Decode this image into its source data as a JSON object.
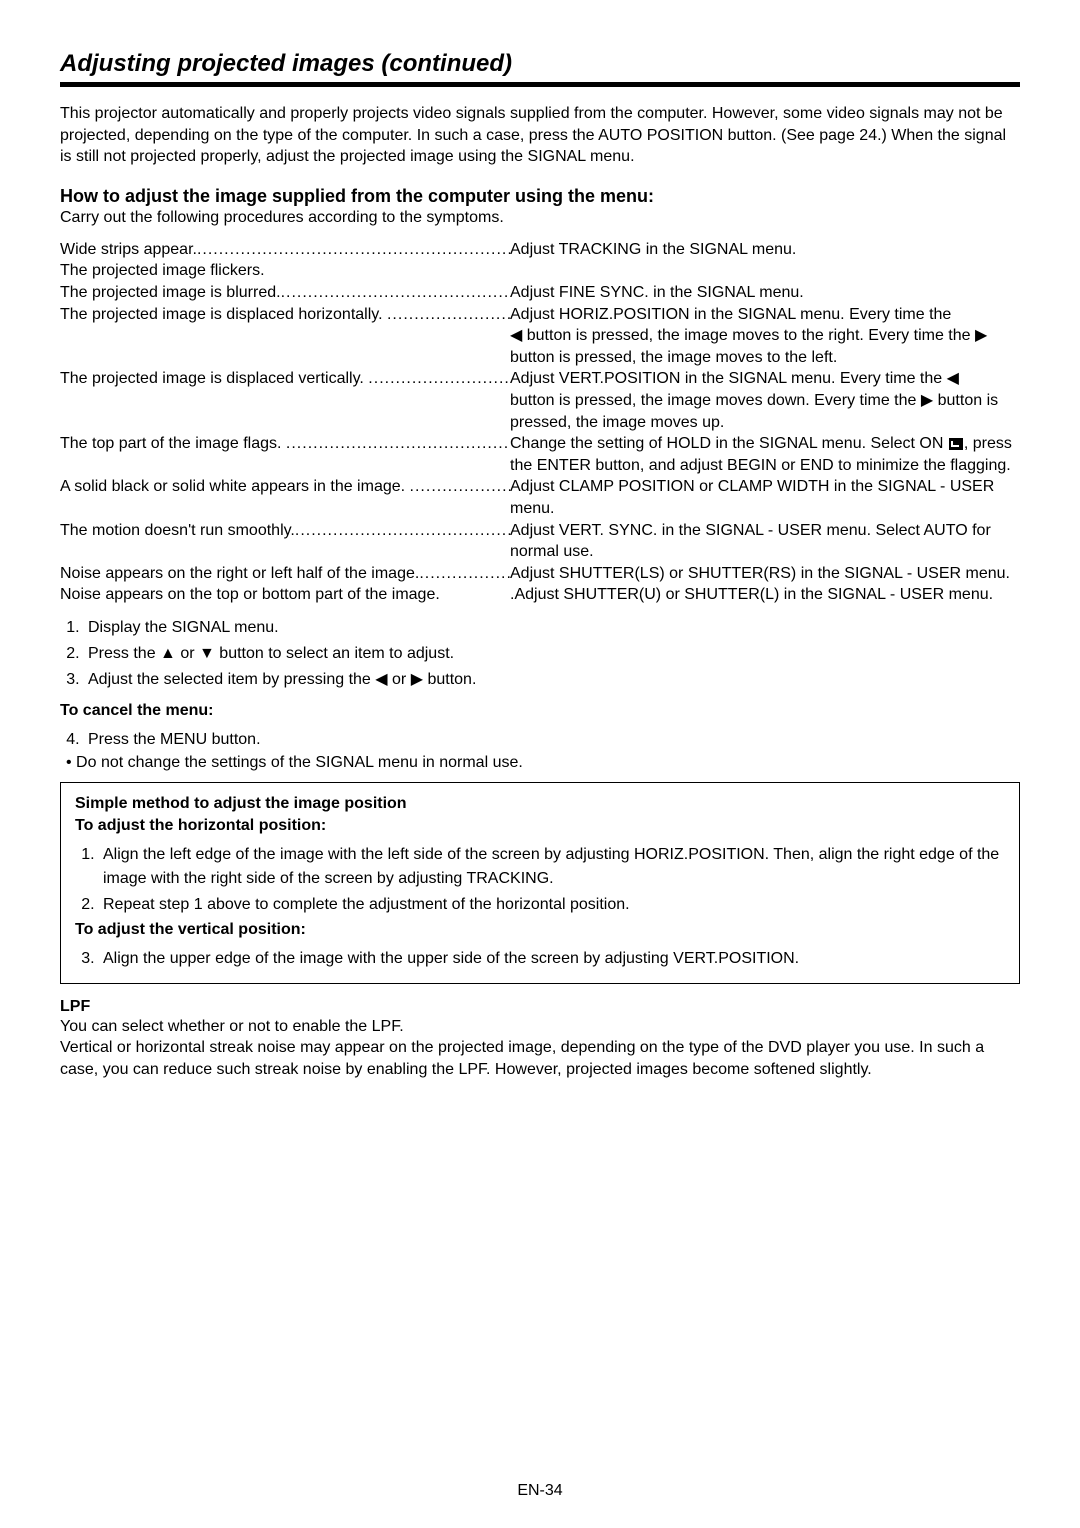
{
  "title": "Adjusting projected images (continued)",
  "intro": "This projector automatically and properly projects video signals supplied from the computer. However, some video signals may not be projected, depending on the type of the computer. In such a case, press the AUTO POSITION button. (See page 24.) When the signal is still not projected properly, adjust the projected image using the SIGNAL menu.",
  "howto_heading": "How to adjust the image supplied from the computer using the menu:",
  "howto_sub": "Carry out the following procedures according to the symptoms.",
  "symptoms": {
    "widestrips_l": "Wide strips appear.",
    "widestrips_r": "Adjust TRACKING in the SIGNAL menu.",
    "flicker_l": "The projected image flickers.",
    "blurred_l": "The projected image is blurred.",
    "blurred_r": "Adjust FINE SYNC. in the SIGNAL menu.",
    "horiz_l": "The projected image is displaced horizontally. ",
    "horiz_r1": "Adjust HORIZ.POSITION in the SIGNAL menu. Every time the ",
    "horiz_r2a": "◀",
    "horiz_r2b": " button is pressed, the image moves to the right. Every time the ",
    "horiz_r2c": "▶",
    "horiz_r2d": " button is pressed, the image moves to the left.",
    "vert_l": "The projected image is displaced vertically. ",
    "vert_r1a": "Adjust VERT.POSITION in the SIGNAL menu. Every time the ",
    "vert_r1b": "◀",
    "vert_r2a": " button is pressed, the image moves down. Every time the ",
    "vert_r2b": "▶",
    "vert_r2c": " button is pressed, the image moves up.",
    "flags_l": "The top part of the image flags. ",
    "flags_r1": "Change the setting of HOLD in the SIGNAL menu. Select ON ",
    "flags_r2": ", press the ENTER button, and adjust BEGIN or END to minimize the flagging.",
    "solid_l": "A solid black or solid white appears in the image. ",
    "solid_r": "Adjust CLAMP POSITION or CLAMP WIDTH in the SIGNAL - USER menu.",
    "motion_l": "The motion doesn't run smoothly.",
    "motion_r": "Adjust VERT. SYNC. in the SIGNAL - USER menu. Select AUTO for normal use.",
    "noiserl_l": "Noise appears on the right or left half of the image.",
    "noiserl_r": "Adjust SHUTTER(LS) or SHUTTER(RS) in the SIGNAL - USER menu.",
    "noisetb_l": "Noise appears on the top or bottom part of the image.",
    "noisetb_r": ".Adjust SHUTTER(U) or SHUTTER(L) in the SIGNAL - USER menu."
  },
  "steps": {
    "s1": "Display the SIGNAL menu.",
    "s2a": "Press the ",
    "s2b": "▲",
    "s2c": " or ",
    "s2d": "▼",
    "s2e": " button to select an item to adjust.",
    "s3a": "Adjust the selected item by pressing the ",
    "s3b": "◀",
    "s3c": " or ",
    "s3d": "▶",
    "s3e": " button."
  },
  "cancel_head": "To cancel the menu:",
  "s4": "Press the MENU button.",
  "bullet1": "•   Do not change the settings of the SIGNAL menu in normal use.",
  "box": {
    "title": "Simple method to adjust the image position",
    "h_head": "To adjust the horizontal position:",
    "h1": "Align the left edge of the image with the left side of the screen by adjusting HORIZ.POSITION. Then, align the right edge of the image with the right side of the screen by adjusting TRACKING.",
    "h2": "Repeat step 1 above to complete the adjustment of the horizontal position.",
    "v_head": "To adjust the vertical position:",
    "v3": "Align the upper edge of the image with the upper side of the screen by adjusting VERT.POSITION."
  },
  "lpf_head": "LPF",
  "lpf_p1": "You can select whether or not to enable the LPF.",
  "lpf_p2": "Vertical or horizontal streak noise may appear on the projected image, depending on the type of the DVD player you use. In such a case, you can reduce such streak noise by enabling the LPF. However, projected images become softened slightly.",
  "pagenum": "EN-34"
}
